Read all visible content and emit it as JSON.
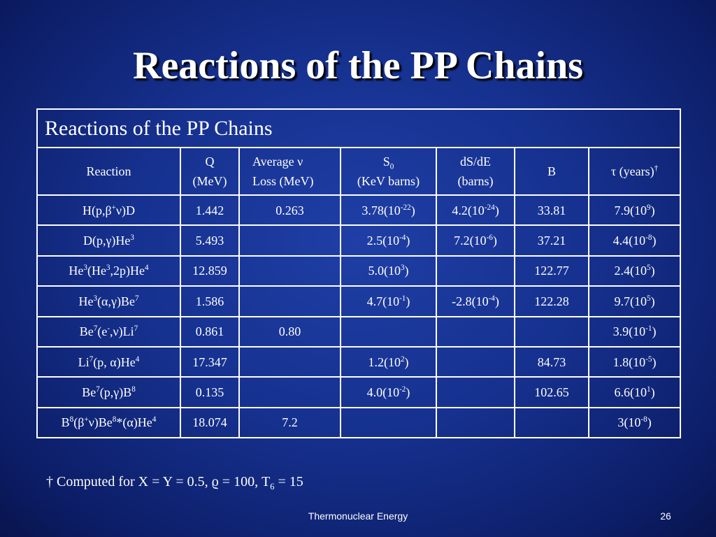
{
  "title": "Reactions of the PP Chains",
  "table": {
    "caption": "Reactions of the PP Chains",
    "headers": [
      [
        [
          "Reaction"
        ]
      ],
      [
        [
          "Q"
        ],
        [
          "(MeV)"
        ]
      ],
      [
        [
          "Average ν"
        ],
        [
          "Loss (MeV)"
        ]
      ],
      [
        [
          "S",
          {
            "sub": "0"
          }
        ],
        [
          "(KeV barns)"
        ]
      ],
      [
        [
          "dS/dE"
        ],
        [
          "(barns)"
        ]
      ],
      [
        [
          "B"
        ]
      ],
      [
        [
          "τ (years)",
          {
            "sup": "†"
          }
        ]
      ]
    ],
    "rows": [
      [
        [
          "H(p,β",
          {
            "sup": "+"
          },
          "ν)D"
        ],
        [
          "1.442"
        ],
        [
          "0.263"
        ],
        [
          "3.78(10",
          {
            "sup": "-22"
          },
          ")"
        ],
        [
          "4.2(10",
          {
            "sup": "-24"
          },
          ")"
        ],
        [
          "33.81"
        ],
        [
          "7.9(10",
          {
            "sup": "9"
          },
          ")"
        ]
      ],
      [
        [
          "D(p,γ)He",
          {
            "sup": "3"
          }
        ],
        [
          "5.493"
        ],
        [],
        [
          "2.5(10",
          {
            "sup": "-4"
          },
          ")"
        ],
        [
          "7.2(10",
          {
            "sup": "-6"
          },
          ")"
        ],
        [
          "37.21"
        ],
        [
          "4.4(10",
          {
            "sup": "-8"
          },
          ")"
        ]
      ],
      [
        [
          "He",
          {
            "sup": "3"
          },
          "(He",
          {
            "sup": "3"
          },
          ",2p)He",
          {
            "sup": "4"
          }
        ],
        [
          "12.859"
        ],
        [],
        [
          "5.0(10",
          {
            "sup": "3"
          },
          ")"
        ],
        [],
        [
          "122.77"
        ],
        [
          "2.4(10",
          {
            "sup": "5"
          },
          ")"
        ]
      ],
      [
        [
          "He",
          {
            "sup": "3"
          },
          "(α,γ)Be",
          {
            "sup": "7"
          }
        ],
        [
          "1.586"
        ],
        [],
        [
          "4.7(10",
          {
            "sup": "-1"
          },
          ")"
        ],
        [
          "-2.8(10",
          {
            "sup": "-4"
          },
          ")"
        ],
        [
          "122.28"
        ],
        [
          "9.7(10",
          {
            "sup": "5"
          },
          ")"
        ]
      ],
      [
        [
          "Be",
          {
            "sup": "7"
          },
          "(e",
          {
            "sup": "-"
          },
          ",ν)Li",
          {
            "sup": "7"
          }
        ],
        [
          "0.861"
        ],
        [
          "0.80"
        ],
        [],
        [],
        [],
        [
          "3.9(10",
          {
            "sup": "-1"
          },
          ")"
        ]
      ],
      [
        [
          "Li",
          {
            "sup": "7"
          },
          "(p, α)He",
          {
            "sup": "4"
          }
        ],
        [
          "17.347"
        ],
        [],
        [
          "1.2(10",
          {
            "sup": "2"
          },
          ")"
        ],
        [],
        [
          "84.73"
        ],
        [
          "1.8(10",
          {
            "sup": "-5"
          },
          ")"
        ]
      ],
      [
        [
          "Be",
          {
            "sup": "7"
          },
          "(p,γ)B",
          {
            "sup": "8"
          }
        ],
        [
          "0.135"
        ],
        [],
        [
          "4.0(10",
          {
            "sup": "-2"
          },
          ")"
        ],
        [],
        [
          "102.65"
        ],
        [
          "6.6(10",
          {
            "sup": "1"
          },
          ")"
        ]
      ],
      [
        [
          "B",
          {
            "sup": "8"
          },
          "(β",
          {
            "sup": "+"
          },
          "ν)Be",
          {
            "sup": "8"
          },
          "*(α)He",
          {
            "sup": "4"
          }
        ],
        [
          "18.074"
        ],
        [
          "7.2"
        ],
        [],
        [],
        [],
        [
          "3(10",
          {
            "sup": "-8"
          },
          ")"
        ]
      ]
    ]
  },
  "footnote": [
    "† Computed for X = Y = 0.5, ϱ = 100, T",
    {
      "sub": "6"
    },
    " = 15"
  ],
  "footer": {
    "text": "Thermonuclear Energy",
    "page": "26"
  }
}
